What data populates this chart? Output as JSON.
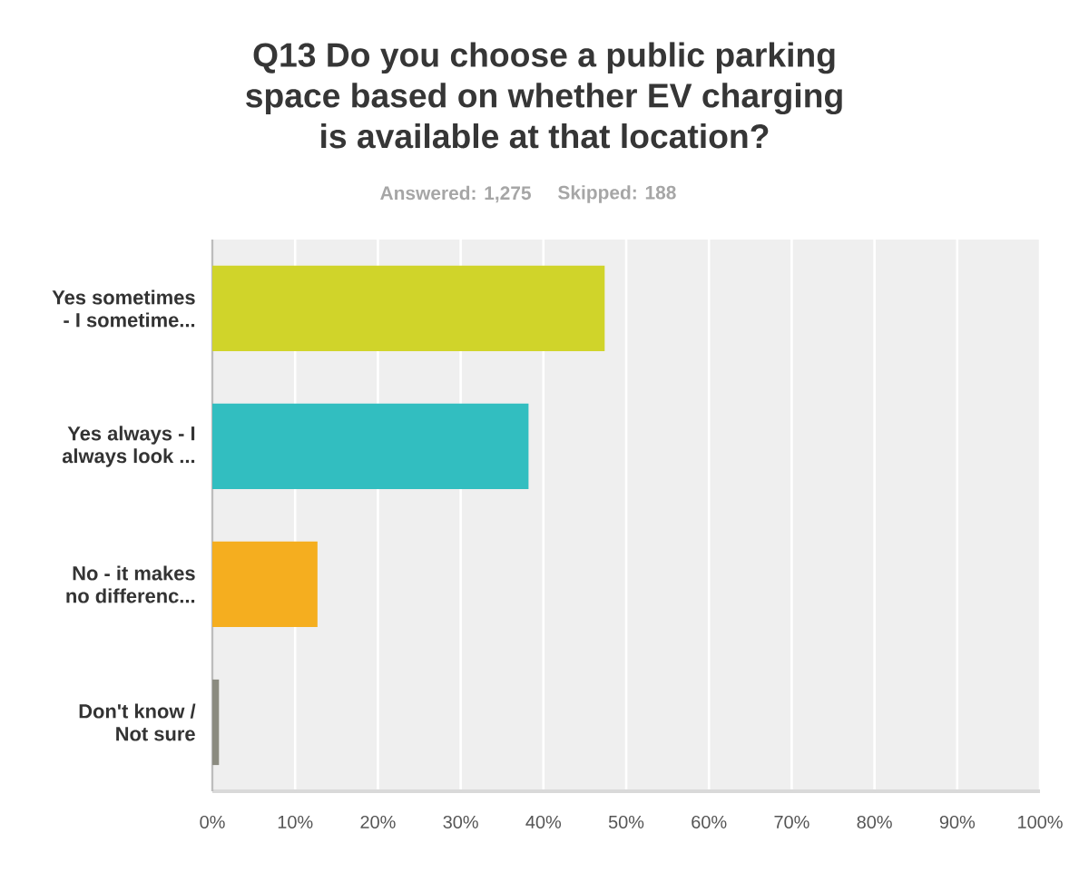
{
  "chart_data": {
    "type": "bar",
    "orientation": "horizontal",
    "title": "Q13 Do you choose a public parking space based on whether EV charging is available at that location?",
    "subtitle": "Answered: 1,275",
    "annotations": [
      "Skipped: 188"
    ],
    "categories": [
      "Yes sometimes - I sometime...",
      "Yes always - I always look ...",
      "No - it makes no differenc...",
      "Don't know / Not sure"
    ],
    "values": [
      47.4,
      38.2,
      12.7,
      0.8
    ],
    "colors": [
      "#d0d42a",
      "#32bec0",
      "#f5ae1f",
      "#8b8b80"
    ],
    "xlim": [
      0,
      100
    ],
    "xticks": [
      {
        "value": 0,
        "label": "0%"
      },
      {
        "value": 10,
        "label": "10%"
      },
      {
        "value": 20,
        "label": "20%"
      },
      {
        "value": 30,
        "label": "30%"
      },
      {
        "value": 40,
        "label": "40%"
      },
      {
        "value": 50,
        "label": "50%"
      },
      {
        "value": 60,
        "label": "60%"
      },
      {
        "value": 70,
        "label": "70%"
      },
      {
        "value": 80,
        "label": "80%"
      },
      {
        "value": 90,
        "label": "90%"
      },
      {
        "value": 100,
        "label": "100%"
      }
    ],
    "grid": "x"
  }
}
